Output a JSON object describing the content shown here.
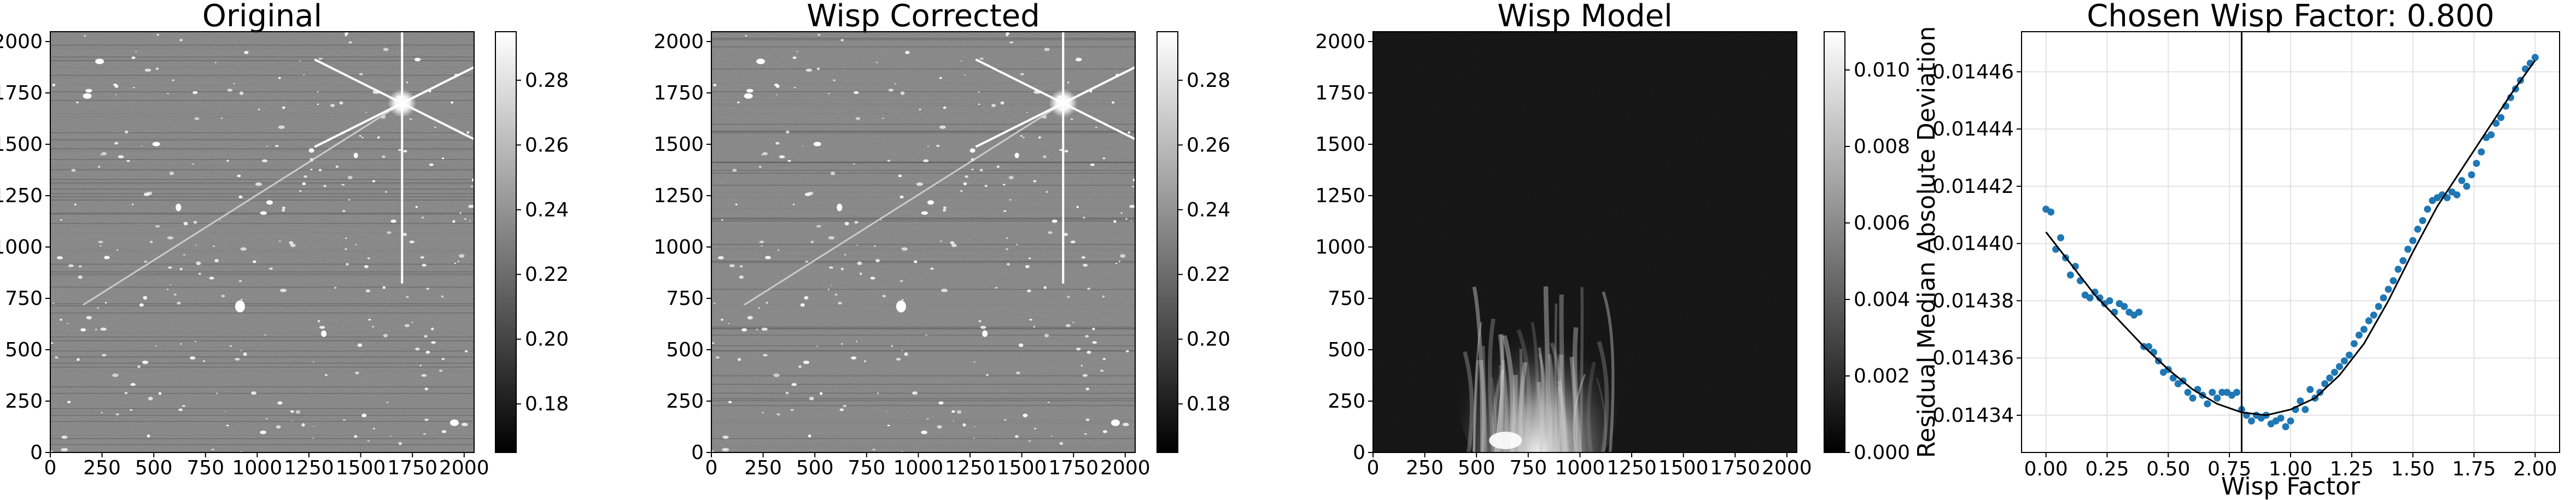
{
  "figure": {
    "panels": [
      {
        "title": "Original",
        "xticks": [
          "0",
          "250",
          "500",
          "750",
          "1000",
          "1250",
          "1500",
          "1750",
          "2000"
        ],
        "yticks": [
          "0",
          "250",
          "500",
          "750",
          "1000",
          "1250",
          "1500",
          "1750",
          "2000"
        ],
        "colorbar_ticks": [
          "0.18",
          "0.20",
          "0.22",
          "0.24",
          "0.26",
          "0.28"
        ]
      },
      {
        "title": "Wisp Corrected",
        "xticks": [
          "0",
          "250",
          "500",
          "750",
          "1000",
          "1250",
          "1500",
          "1750",
          "2000"
        ],
        "yticks": [
          "0",
          "250",
          "500",
          "750",
          "1000",
          "1250",
          "1500",
          "1750",
          "2000"
        ],
        "colorbar_ticks": [
          "0.18",
          "0.20",
          "0.22",
          "0.24",
          "0.26",
          "0.28"
        ]
      },
      {
        "title": "Wisp Model",
        "xticks": [
          "0",
          "250",
          "500",
          "750",
          "1000",
          "1250",
          "1500",
          "1750",
          "2000"
        ],
        "yticks": [
          "0",
          "250",
          "500",
          "750",
          "1000",
          "1250",
          "1500",
          "1750",
          "2000"
        ],
        "colorbar_ticks": [
          "0.000",
          "0.002",
          "0.004",
          "0.006",
          "0.008",
          "0.010"
        ]
      }
    ]
  },
  "chart_data": [
    {
      "type": "heatmap",
      "title": "Original",
      "xlim": [
        0,
        2048
      ],
      "ylim": [
        0,
        2048
      ],
      "colormap": "gray",
      "color_range": [
        0.165,
        0.295
      ],
      "colorbar_ticks": [
        0.18,
        0.2,
        0.22,
        0.24,
        0.26,
        0.28
      ]
    },
    {
      "type": "heatmap",
      "title": "Wisp Corrected",
      "xlim": [
        0,
        2048
      ],
      "ylim": [
        0,
        2048
      ],
      "colormap": "gray",
      "color_range": [
        0.165,
        0.295
      ],
      "colorbar_ticks": [
        0.18,
        0.2,
        0.22,
        0.24,
        0.26,
        0.28
      ]
    },
    {
      "type": "heatmap",
      "title": "Wisp Model",
      "xlim": [
        0,
        2048
      ],
      "ylim": [
        0,
        2048
      ],
      "colormap": "gray",
      "color_range": [
        0.0,
        0.011
      ],
      "colorbar_ticks": [
        0.0,
        0.002,
        0.004,
        0.006,
        0.008,
        0.01
      ]
    },
    {
      "type": "scatter",
      "title": "Chosen Wisp Factor: 0.800",
      "xlabel": "Wisp Factor",
      "ylabel": "Residual Median Absolute Deviation",
      "xlim": [
        -0.1,
        2.1
      ],
      "ylim": [
        0.014327,
        0.014474
      ],
      "xticks": [
        "0.00",
        "0.25",
        "0.50",
        "0.75",
        "1.00",
        "1.25",
        "1.50",
        "1.75",
        "2.00"
      ],
      "yticks": [
        "0.01434",
        "0.01436",
        "0.01438",
        "0.01440",
        "0.01442",
        "0.01444",
        "0.01446"
      ],
      "grid": true,
      "point_color": "#1f77b4",
      "chosen_factor": 0.8,
      "points": [
        [
          0.0,
          0.014412
        ],
        [
          0.02,
          0.014411
        ],
        [
          0.04,
          0.014398
        ],
        [
          0.06,
          0.014402
        ],
        [
          0.08,
          0.014395
        ],
        [
          0.1,
          0.014389
        ],
        [
          0.12,
          0.014392
        ],
        [
          0.14,
          0.014387
        ],
        [
          0.16,
          0.014382
        ],
        [
          0.18,
          0.014381
        ],
        [
          0.2,
          0.014383
        ],
        [
          0.22,
          0.014381
        ],
        [
          0.24,
          0.014379
        ],
        [
          0.26,
          0.01438
        ],
        [
          0.28,
          0.014376
        ],
        [
          0.3,
          0.014379
        ],
        [
          0.32,
          0.014378
        ],
        [
          0.34,
          0.014376
        ],
        [
          0.36,
          0.014375
        ],
        [
          0.38,
          0.014376
        ],
        [
          0.4,
          0.014364
        ],
        [
          0.42,
          0.014364
        ],
        [
          0.44,
          0.014362
        ],
        [
          0.46,
          0.014359
        ],
        [
          0.48,
          0.014355
        ],
        [
          0.5,
          0.014356
        ],
        [
          0.52,
          0.014353
        ],
        [
          0.54,
          0.014351
        ],
        [
          0.56,
          0.014352
        ],
        [
          0.58,
          0.014348
        ],
        [
          0.6,
          0.014346
        ],
        [
          0.62,
          0.014349
        ],
        [
          0.64,
          0.014347
        ],
        [
          0.66,
          0.014344
        ],
        [
          0.68,
          0.014348
        ],
        [
          0.7,
          0.014346
        ],
        [
          0.72,
          0.014348
        ],
        [
          0.74,
          0.014348
        ],
        [
          0.76,
          0.014347
        ],
        [
          0.78,
          0.014348
        ],
        [
          0.8,
          0.014342
        ],
        [
          0.82,
          0.01434
        ],
        [
          0.84,
          0.014338
        ],
        [
          0.86,
          0.01434
        ],
        [
          0.88,
          0.014339
        ],
        [
          0.9,
          0.01434
        ],
        [
          0.92,
          0.014337
        ],
        [
          0.94,
          0.014338
        ],
        [
          0.96,
          0.014339
        ],
        [
          0.98,
          0.014336
        ],
        [
          1.0,
          0.014338
        ],
        [
          1.02,
          0.014342
        ],
        [
          1.04,
          0.014345
        ],
        [
          1.06,
          0.014342
        ],
        [
          1.08,
          0.014349
        ],
        [
          1.1,
          0.014346
        ],
        [
          1.12,
          0.014348
        ],
        [
          1.14,
          0.014351
        ],
        [
          1.16,
          0.014353
        ],
        [
          1.18,
          0.014355
        ],
        [
          1.2,
          0.014357
        ],
        [
          1.22,
          0.014359
        ],
        [
          1.24,
          0.014361
        ],
        [
          1.26,
          0.014365
        ],
        [
          1.28,
          0.014368
        ],
        [
          1.3,
          0.01437
        ],
        [
          1.32,
          0.014373
        ],
        [
          1.34,
          0.014375
        ],
        [
          1.36,
          0.014378
        ],
        [
          1.38,
          0.014381
        ],
        [
          1.4,
          0.014384
        ],
        [
          1.42,
          0.014387
        ],
        [
          1.44,
          0.014391
        ],
        [
          1.46,
          0.014394
        ],
        [
          1.48,
          0.014398
        ],
        [
          1.5,
          0.014401
        ],
        [
          1.52,
          0.014405
        ],
        [
          1.54,
          0.014408
        ],
        [
          1.56,
          0.014412
        ],
        [
          1.58,
          0.014415
        ],
        [
          1.6,
          0.014416
        ],
        [
          1.62,
          0.014417
        ],
        [
          1.64,
          0.014416
        ],
        [
          1.66,
          0.014418
        ],
        [
          1.68,
          0.014417
        ],
        [
          1.7,
          0.014422
        ],
        [
          1.72,
          0.01442
        ],
        [
          1.74,
          0.014424
        ],
        [
          1.76,
          0.014428
        ],
        [
          1.78,
          0.014432
        ],
        [
          1.8,
          0.014437
        ],
        [
          1.82,
          0.014438
        ],
        [
          1.84,
          0.014442
        ],
        [
          1.86,
          0.014444
        ],
        [
          1.88,
          0.014448
        ],
        [
          1.9,
          0.014451
        ],
        [
          1.92,
          0.014454
        ],
        [
          1.94,
          0.014457
        ],
        [
          1.96,
          0.014461
        ],
        [
          1.98,
          0.014463
        ],
        [
          2.0,
          0.014465
        ]
      ],
      "fit_curve": [
        [
          0.0,
          0.014404
        ],
        [
          0.1,
          0.014393
        ],
        [
          0.2,
          0.014382
        ],
        [
          0.3,
          0.014373
        ],
        [
          0.4,
          0.014364
        ],
        [
          0.5,
          0.014356
        ],
        [
          0.6,
          0.014349
        ],
        [
          0.7,
          0.014344
        ],
        [
          0.8,
          0.014341
        ],
        [
          0.9,
          0.01434
        ],
        [
          1.0,
          0.014342
        ],
        [
          1.1,
          0.014346
        ],
        [
          1.2,
          0.014354
        ],
        [
          1.3,
          0.014365
        ],
        [
          1.4,
          0.01438
        ],
        [
          1.5,
          0.014397
        ],
        [
          1.6,
          0.014413
        ],
        [
          1.7,
          0.014426
        ],
        [
          1.8,
          0.014439
        ],
        [
          1.9,
          0.014452
        ],
        [
          2.0,
          0.014464
        ]
      ]
    }
  ]
}
